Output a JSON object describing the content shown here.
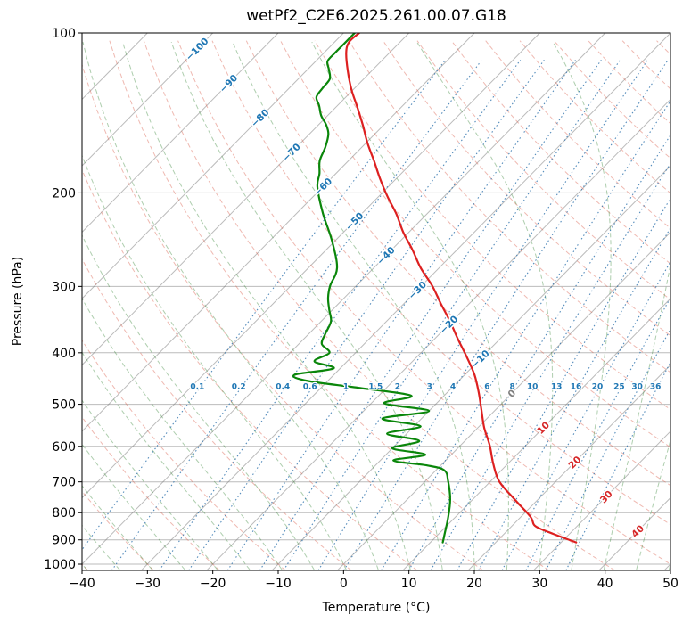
{
  "chart_data": {
    "type": "skewt-logp",
    "title": "wetPf2_C2E6.2025.261.00.07.G18",
    "xlabel": "Temperature (°C)",
    "ylabel": "Pressure (hPa)",
    "xlim": [
      -40,
      50
    ],
    "pressure_range_hpa": [
      100,
      1027
    ],
    "skew_degC_per_decade": 80,
    "x_ticks": [
      -40,
      -30,
      -20,
      -10,
      0,
      10,
      20,
      30,
      40,
      50
    ],
    "pressure_ticks": [
      100,
      200,
      300,
      400,
      500,
      600,
      700,
      800,
      900,
      1000
    ],
    "grid": true,
    "isotherms": {
      "range": [
        -130,
        60
      ],
      "step": 10,
      "color": "rgba(120,120,120,0.5)",
      "labels": [
        -100,
        -90,
        -80,
        -70,
        -60,
        -50,
        -40,
        -30,
        -20,
        -10,
        0,
        10,
        20,
        30,
        40
      ],
      "label_colors": {
        "negative": "#1f77b4",
        "zero": "#7f7f7f",
        "positive": "#d62728"
      }
    },
    "dry_adiabats": {
      "theta_range": [
        -40,
        200
      ],
      "step": 10,
      "color": "rgba(218,88,70,0.42)"
    },
    "moist_adiabats": {
      "t0_range": [
        -40,
        50
      ],
      "step": 5,
      "color": "rgba(52,132,52,0.40)"
    },
    "mixing_ratio_lines": {
      "values_g_per_kg": [
        0.1,
        0.2,
        0.4,
        0.6,
        1,
        1.5,
        2,
        3,
        4,
        6,
        8,
        10,
        13,
        16,
        20,
        25,
        30,
        36
      ],
      "label_pressure_hpa": 472,
      "color": "rgba(40,110,170,0.8)",
      "label_color": "#1f77b4"
    },
    "temperature_profile": {
      "name": "temperature",
      "color": "#dd2020",
      "points_p_hpa_T_c": [
        [
          910,
          32.3
        ],
        [
          877,
          27.5
        ],
        [
          848,
          23.6
        ],
        [
          815,
          21.5
        ],
        [
          754,
          16.3
        ],
        [
          698,
          11.3
        ],
        [
          646,
          7.7
        ],
        [
          598,
          4.5
        ],
        [
          554,
          1.0
        ],
        [
          513,
          -2.1
        ],
        [
          475,
          -5.2
        ],
        [
          440,
          -8.5
        ],
        [
          407,
          -12.4
        ],
        [
          377,
          -16.4
        ],
        [
          349,
          -20.3
        ],
        [
          323,
          -24.4
        ],
        [
          299,
          -28.4
        ],
        [
          277,
          -32.8
        ],
        [
          256,
          -36.8
        ],
        [
          237,
          -40.9
        ],
        [
          219,
          -44.7
        ],
        [
          203,
          -48.7
        ],
        [
          188,
          -52.5
        ],
        [
          174,
          -56.1
        ],
        [
          161,
          -59.8
        ],
        [
          149,
          -63.2
        ],
        [
          138,
          -66.7
        ],
        [
          128,
          -70.2
        ],
        [
          118,
          -73.6
        ],
        [
          109,
          -76.6
        ],
        [
          104,
          -77.8
        ],
        [
          100,
          -77.6
        ]
      ]
    },
    "dewpoint_profile": {
      "name": "dewpoint",
      "color": "#0a860a",
      "points_p_hpa_Td_c": [
        [
          910,
          11.9
        ],
        [
          877,
          10.9
        ],
        [
          815,
          8.9
        ],
        [
          754,
          6.5
        ],
        [
          698,
          3.5
        ],
        [
          666,
          1.3
        ],
        [
          652,
          -2
        ],
        [
          638,
          -8
        ],
        [
          622,
          -4
        ],
        [
          605,
          -10
        ],
        [
          586,
          -7
        ],
        [
          568,
          -13
        ],
        [
          550,
          -9
        ],
        [
          532,
          -16
        ],
        [
          515,
          -10
        ],
        [
          498,
          -18
        ],
        [
          482,
          -15
        ],
        [
          466,
          -24
        ],
        [
          452,
          -33
        ],
        [
          440,
          -36
        ],
        [
          428,
          -31
        ],
        [
          415,
          -35
        ],
        [
          400,
          -34
        ],
        [
          385,
          -36.5
        ],
        [
          368,
          -37.5
        ],
        [
          349,
          -38.5
        ],
        [
          332,
          -40.5
        ],
        [
          315,
          -42.5
        ],
        [
          299,
          -44
        ],
        [
          277,
          -45.6
        ],
        [
          246,
          -50.5
        ],
        [
          219,
          -55.9
        ],
        [
          195,
          -60.8
        ],
        [
          184,
          -62.5
        ],
        [
          174,
          -64.4
        ],
        [
          164,
          -65.6
        ],
        [
          155,
          -67.1
        ],
        [
          149,
          -68.8
        ],
        [
          143,
          -71
        ],
        [
          137,
          -72.8
        ],
        [
          132,
          -74.5
        ],
        [
          127,
          -74.9
        ],
        [
          122,
          -75.2
        ],
        [
          117,
          -76.8
        ],
        [
          113,
          -78.2
        ],
        [
          109,
          -78.3
        ],
        [
          105,
          -78.3
        ],
        [
          100,
          -78.3
        ]
      ]
    }
  }
}
